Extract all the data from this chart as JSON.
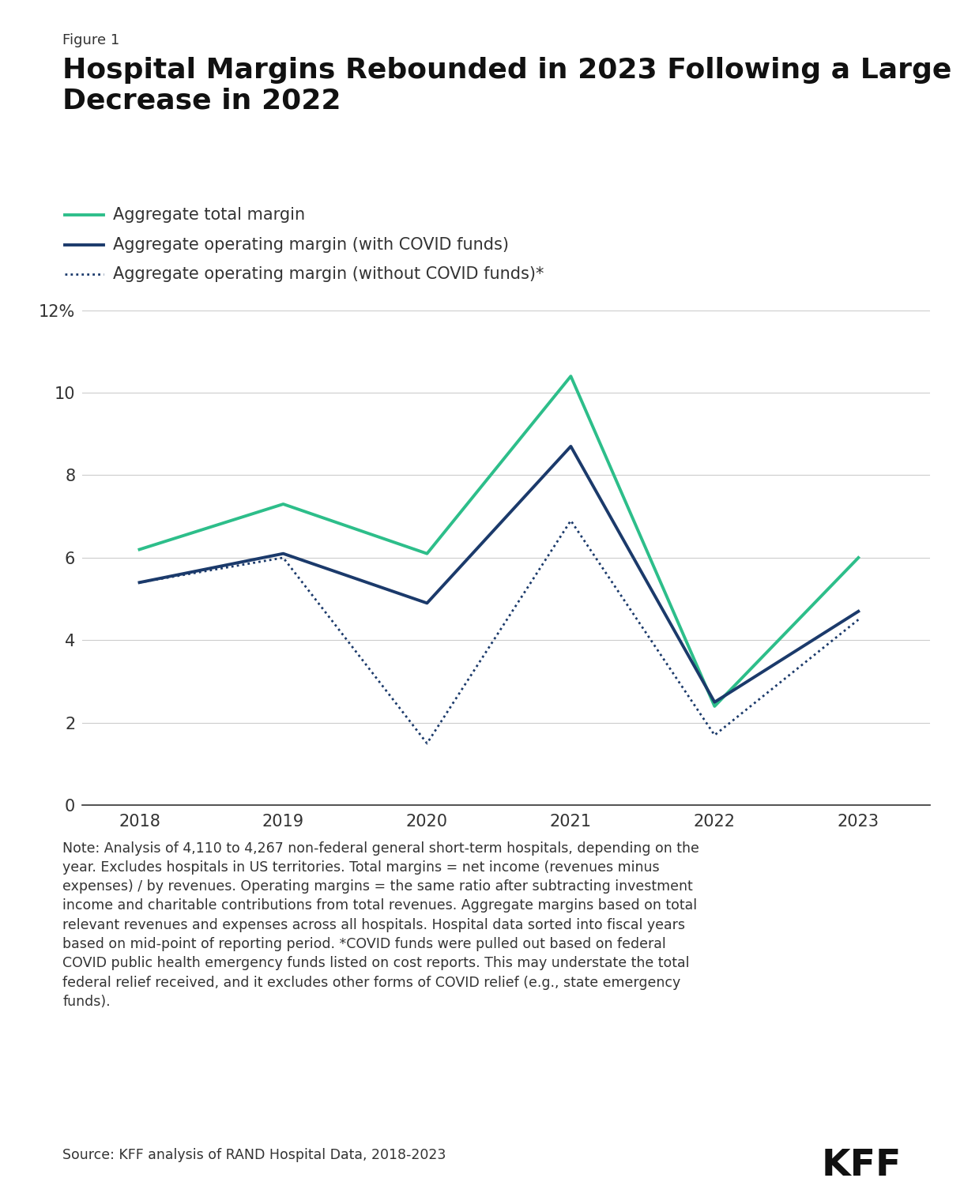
{
  "figure_label": "Figure 1",
  "title": "Hospital Margins Rebounded in 2023 Following a Large\nDecrease in 2022",
  "years": [
    2018,
    2019,
    2020,
    2021,
    2022,
    2023
  ],
  "total_margin": [
    6.2,
    7.3,
    6.1,
    10.4,
    2.4,
    6.0
  ],
  "operating_margin_with": [
    5.4,
    6.1,
    4.9,
    8.7,
    2.5,
    4.7
  ],
  "operating_margin_without": [
    5.4,
    6.0,
    1.5,
    6.9,
    1.7,
    4.5
  ],
  "total_margin_color": "#2dbe8a",
  "operating_with_color": "#1b3a6b",
  "operating_without_color": "#1b3a6b",
  "ylim": [
    0,
    12
  ],
  "yticks": [
    0,
    2,
    4,
    6,
    8,
    10,
    12
  ],
  "legend_labels": [
    "Aggregate total margin",
    "Aggregate operating margin (with COVID funds)",
    "Aggregate operating margin (without COVID funds)*"
  ],
  "note_text": "Note: Analysis of 4,110 to 4,267 non-federal general short-term hospitals, depending on the\nyear. Excludes hospitals in US territories. Total margins = net income (revenues minus\nexpenses) / by revenues. Operating margins = the same ratio after subtracting investment\nincome and charitable contributions from total revenues. Aggregate margins based on total\nrelevant revenues and expenses across all hospitals. Hospital data sorted into fiscal years\nbased on mid-point of reporting period. *COVID funds were pulled out based on federal\nCOVID public health emergency funds listed on cost reports. This may understate the total\nfederal relief received, and it excludes other forms of COVID relief (e.g., state emergency\nfunds).",
  "source_text": "Source: KFF analysis of RAND Hospital Data, 2018-2023",
  "kff_text": "KFF",
  "background_color": "#ffffff",
  "text_color": "#333333",
  "grid_color": "#cccccc"
}
